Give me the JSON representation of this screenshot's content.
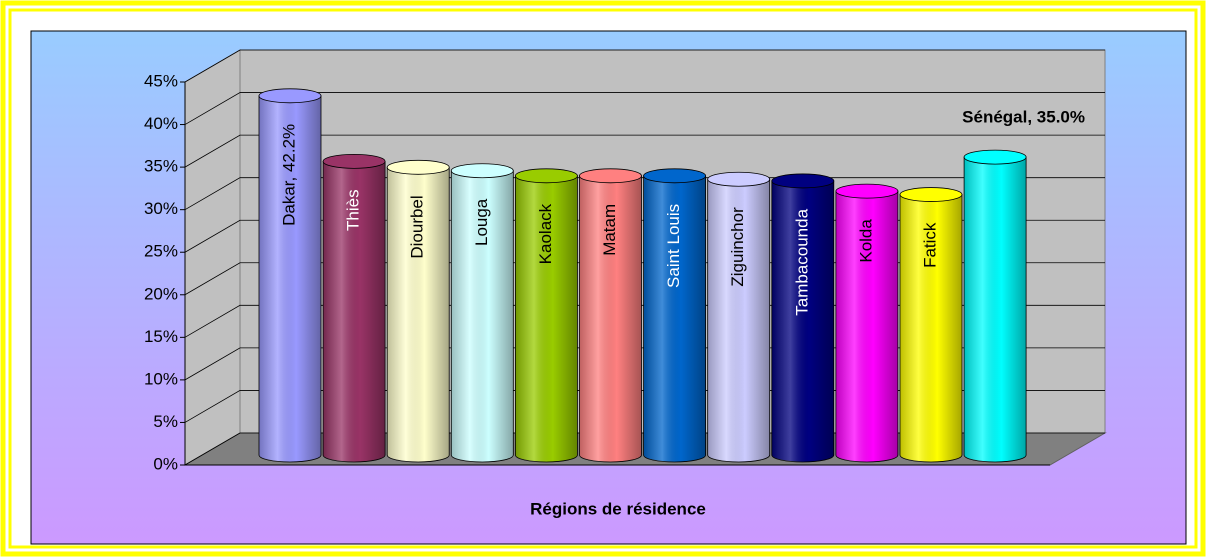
{
  "chart_data": {
    "type": "bar",
    "x_label": "Régions de résidence",
    "categories": [
      "Dakar, 42.2%",
      "Thiès",
      "Diourbel",
      "Louga",
      "Kaolack",
      "Matam",
      "Saint Louis",
      "Ziguinchor",
      "Tambacounda",
      "Kolda",
      "Fatick",
      "Sénégal, 35.0%"
    ],
    "values": [
      42.2,
      34.5,
      33.8,
      33.4,
      32.8,
      32.8,
      32.8,
      32.4,
      32.2,
      31.0,
      30.6,
      35.0
    ],
    "colors": [
      "#9999ff",
      "#993366",
      "#ffffcc",
      "#ccffff",
      "#99cc00",
      "#ff8080",
      "#0066cc",
      "#ccccff",
      "#000080",
      "#ff00ff",
      "#ffff00",
      "#00ffff"
    ],
    "ylim": [
      0,
      45
    ],
    "yticks": [
      {
        "value": 0,
        "label": "0%"
      },
      {
        "value": 5,
        "label": "5%"
      },
      {
        "value": 10,
        "label": "10%"
      },
      {
        "value": 15,
        "label": "15%"
      },
      {
        "value": 20,
        "label": "20%"
      },
      {
        "value": 25,
        "label": "25%"
      },
      {
        "value": 30,
        "label": "30%"
      },
      {
        "value": 35,
        "label": "35%"
      },
      {
        "value": 40,
        "label": "40%"
      },
      {
        "value": 45,
        "label": "45%"
      }
    ],
    "grid": true
  }
}
